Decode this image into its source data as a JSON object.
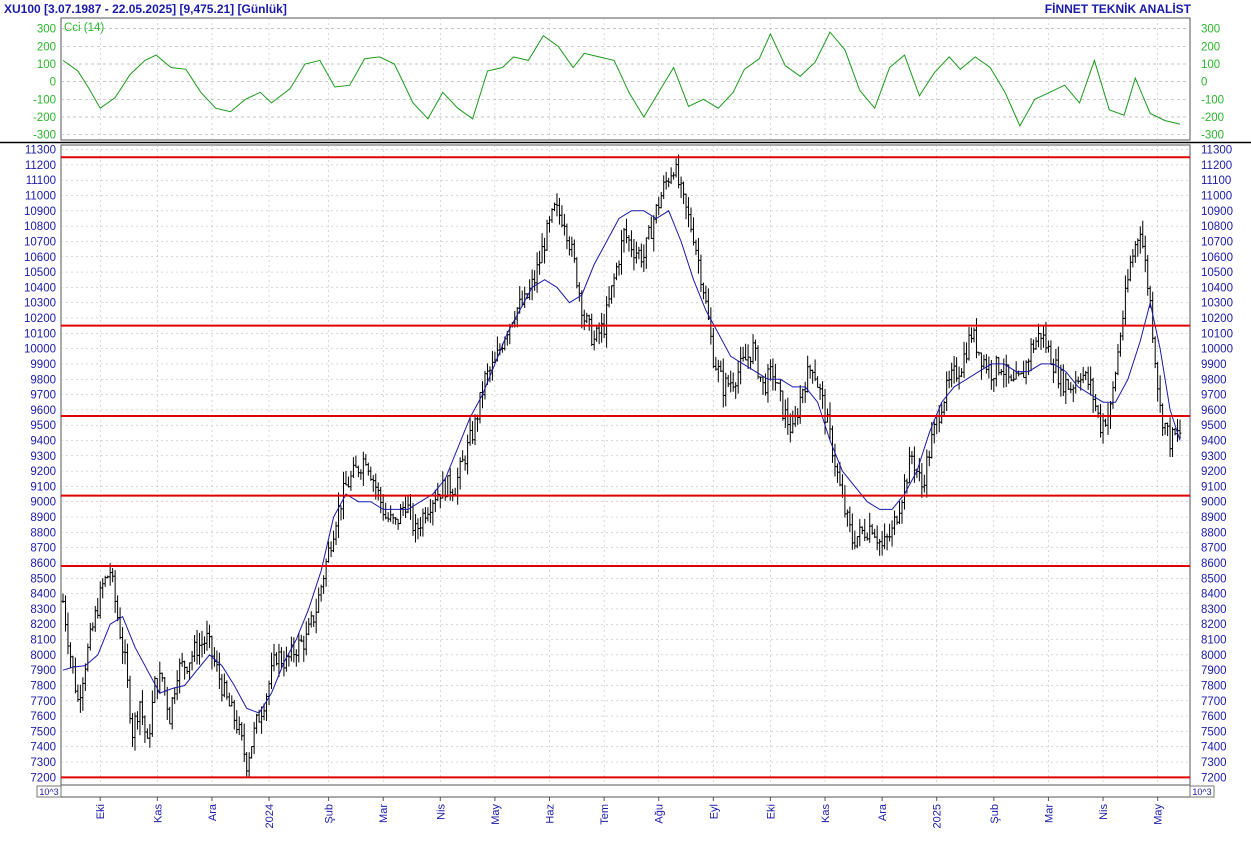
{
  "header": {
    "left": "XU100  [3.07.1987 - 22.05.2025]  [9,475.21]  [Günlük]",
    "right": "FİNNET TEKNİK ANALİST"
  },
  "colors": {
    "price_bar": "#000000",
    "moving_average": "#1a1aa8",
    "cci": "#1a9a1a",
    "horizontal_level": "#e00000",
    "axis_text": "#1a1aa8",
    "cci_axis_text": "#2bb52b",
    "grid": "#b0b0b0"
  },
  "chart_data": [
    {
      "type": "line",
      "indicator": "CCI",
      "title": "Cci (14)",
      "ylim": [
        -330,
        360
      ],
      "yticks": [
        300,
        200,
        100,
        0,
        -100,
        -200,
        -300
      ],
      "x_index_range": [
        0,
        300
      ],
      "points": [
        [
          0,
          120
        ],
        [
          4,
          60
        ],
        [
          7,
          -40
        ],
        [
          10,
          -150
        ],
        [
          14,
          -90
        ],
        [
          18,
          40
        ],
        [
          22,
          120
        ],
        [
          25,
          150
        ],
        [
          29,
          80
        ],
        [
          33,
          70
        ],
        [
          37,
          -60
        ],
        [
          41,
          -150
        ],
        [
          45,
          -170
        ],
        [
          49,
          -100
        ],
        [
          53,
          -60
        ],
        [
          56,
          -120
        ],
        [
          61,
          -40
        ],
        [
          65,
          100
        ],
        [
          69,
          120
        ],
        [
          73,
          -30
        ],
        [
          77,
          -20
        ],
        [
          81,
          130
        ],
        [
          85,
          140
        ],
        [
          89,
          100
        ],
        [
          94,
          -120
        ],
        [
          98,
          -210
        ],
        [
          102,
          -60
        ],
        [
          106,
          -150
        ],
        [
          110,
          -210
        ],
        [
          114,
          60
        ],
        [
          118,
          80
        ],
        [
          121,
          140
        ],
        [
          125,
          120
        ],
        [
          129,
          260
        ],
        [
          133,
          200
        ],
        [
          137,
          80
        ],
        [
          140,
          160
        ],
        [
          144,
          140
        ],
        [
          148,
          120
        ],
        [
          152,
          -60
        ],
        [
          156,
          -200
        ],
        [
          160,
          -60
        ],
        [
          164,
          80
        ],
        [
          168,
          -140
        ],
        [
          172,
          -100
        ],
        [
          176,
          -150
        ],
        [
          180,
          -60
        ],
        [
          183,
          70
        ],
        [
          187,
          130
        ],
        [
          190,
          270
        ],
        [
          194,
          90
        ],
        [
          198,
          30
        ],
        [
          202,
          110
        ],
        [
          206,
          280
        ],
        [
          210,
          180
        ],
        [
          214,
          -50
        ],
        [
          218,
          -150
        ],
        [
          222,
          80
        ],
        [
          226,
          150
        ],
        [
          230,
          -80
        ],
        [
          234,
          50
        ],
        [
          238,
          140
        ],
        [
          241,
          70
        ],
        [
          245,
          140
        ],
        [
          249,
          80
        ],
        [
          253,
          -60
        ],
        [
          257,
          -250
        ],
        [
          261,
          -100
        ],
        [
          265,
          -60
        ],
        [
          269,
          -20
        ],
        [
          273,
          -120
        ],
        [
          277,
          120
        ],
        [
          281,
          -160
        ],
        [
          285,
          -190
        ],
        [
          288,
          20
        ],
        [
          292,
          -180
        ],
        [
          296,
          -220
        ],
        [
          300,
          -240
        ]
      ],
      "grid": true
    },
    {
      "type": "ohlc",
      "title": "XU100",
      "ylim": [
        7150,
        11330
      ],
      "yticks": [
        11300,
        11200,
        11100,
        11000,
        10900,
        10800,
        10700,
        10600,
        10500,
        10400,
        10300,
        10200,
        10100,
        10000,
        9900,
        9800,
        9700,
        9600,
        9500,
        9400,
        9300,
        9200,
        9100,
        9000,
        8900,
        8800,
        8700,
        8600,
        8500,
        8400,
        8300,
        8200,
        8100,
        8000,
        7900,
        7800,
        7700,
        7600,
        7500,
        7400,
        7300,
        7200
      ],
      "ytick_multiplier_label": "10^3",
      "x_tick_labels": [
        "Eki",
        "Kas",
        "Ara",
        "2024",
        "Şub",
        "Mar",
        "Nis",
        "May",
        "Haz",
        "Tem",
        "Ağu",
        "Eyl",
        "Eki",
        "Kas",
        "Ara",
        "2025",
        "Şub",
        "Mar",
        "Nis",
        "May"
      ],
      "x_tick_positions": [
        15,
        38,
        60,
        83,
        107,
        129,
        152,
        174,
        196,
        218,
        240,
        262,
        285,
        307,
        330,
        352,
        375,
        397,
        419,
        441
      ],
      "x_index_range": [
        0,
        450
      ],
      "horizontal_levels": [
        11250,
        10150,
        9560,
        9040,
        8580,
        7200
      ],
      "close_path": [
        [
          0,
          8350
        ],
        [
          3,
          8000
        ],
        [
          6,
          7700
        ],
        [
          9,
          7950
        ],
        [
          13,
          8250
        ],
        [
          16,
          8450
        ],
        [
          19,
          8550
        ],
        [
          22,
          8250
        ],
        [
          25,
          7950
        ],
        [
          28,
          7500
        ],
        [
          31,
          7700
        ],
        [
          34,
          7400
        ],
        [
          37,
          7800
        ],
        [
          40,
          7850
        ],
        [
          43,
          7600
        ],
        [
          46,
          7900
        ],
        [
          50,
          7950
        ],
        [
          54,
          8050
        ],
        [
          58,
          8100
        ],
        [
          62,
          7900
        ],
        [
          66,
          7700
        ],
        [
          70,
          7550
        ],
        [
          74,
          7300
        ],
        [
          78,
          7550
        ],
        [
          82,
          7750
        ],
        [
          86,
          8000
        ],
        [
          90,
          7950
        ],
        [
          94,
          8050
        ],
        [
          98,
          8100
        ],
        [
          102,
          8300
        ],
        [
          106,
          8600
        ],
        [
          110,
          8900
        ],
        [
          114,
          9100
        ],
        [
          118,
          9200
        ],
        [
          122,
          9300
        ],
        [
          126,
          9100
        ],
        [
          130,
          8900
        ],
        [
          134,
          8850
        ],
        [
          138,
          9000
        ],
        [
          142,
          8800
        ],
        [
          146,
          8950
        ],
        [
          150,
          9050
        ],
        [
          154,
          9100
        ],
        [
          158,
          9100
        ],
        [
          162,
          9300
        ],
        [
          166,
          9500
        ],
        [
          170,
          9800
        ],
        [
          174,
          9900
        ],
        [
          178,
          10100
        ],
        [
          182,
          10250
        ],
        [
          186,
          10300
        ],
        [
          190,
          10450
        ],
        [
          194,
          10700
        ],
        [
          198,
          10900
        ],
        [
          202,
          10850
        ],
        [
          206,
          10550
        ],
        [
          210,
          10200
        ],
        [
          214,
          10050
        ],
        [
          218,
          10150
        ],
        [
          222,
          10450
        ],
        [
          226,
          10750
        ],
        [
          230,
          10650
        ],
        [
          234,
          10600
        ],
        [
          238,
          10850
        ],
        [
          242,
          11050
        ],
        [
          246,
          11200
        ],
        [
          250,
          10950
        ],
        [
          254,
          10750
        ],
        [
          258,
          10400
        ],
        [
          262,
          9950
        ],
        [
          266,
          9750
        ],
        [
          270,
          9800
        ],
        [
          274,
          9900
        ],
        [
          278,
          10000
        ],
        [
          282,
          9750
        ],
        [
          286,
          9850
        ],
        [
          290,
          9600
        ],
        [
          294,
          9450
        ],
        [
          298,
          9750
        ],
        [
          302,
          9900
        ],
        [
          306,
          9650
        ],
        [
          310,
          9350
        ],
        [
          314,
          9000
        ],
        [
          318,
          8750
        ],
        [
          322,
          8800
        ],
        [
          326,
          8850
        ],
        [
          330,
          8700
        ],
        [
          334,
          8800
        ],
        [
          338,
          9050
        ],
        [
          342,
          9300
        ],
        [
          346,
          9100
        ],
        [
          350,
          9400
        ],
        [
          354,
          9650
        ],
        [
          358,
          9800
        ],
        [
          362,
          9900
        ],
        [
          366,
          10100
        ],
        [
          370,
          9950
        ],
        [
          374,
          9850
        ],
        [
          378,
          9900
        ],
        [
          382,
          9750
        ],
        [
          386,
          9800
        ],
        [
          390,
          10000
        ],
        [
          394,
          10100
        ],
        [
          398,
          9950
        ],
        [
          402,
          9800
        ],
        [
          406,
          9750
        ],
        [
          410,
          9850
        ],
        [
          414,
          9750
        ],
        [
          418,
          9500
        ],
        [
          422,
          9600
        ],
        [
          426,
          10100
        ],
        [
          430,
          10550
        ],
        [
          434,
          10800
        ],
        [
          438,
          10300
        ],
        [
          442,
          9600
        ],
        [
          446,
          9400
        ],
        [
          450,
          9450
        ]
      ],
      "moving_average_path": [
        [
          0,
          7900
        ],
        [
          4,
          7920
        ],
        [
          9,
          7930
        ],
        [
          14,
          8000
        ],
        [
          19,
          8200
        ],
        [
          24,
          8250
        ],
        [
          29,
          8050
        ],
        [
          34,
          7900
        ],
        [
          39,
          7750
        ],
        [
          44,
          7780
        ],
        [
          49,
          7800
        ],
        [
          54,
          7900
        ],
        [
          59,
          8000
        ],
        [
          64,
          7930
        ],
        [
          69,
          7800
        ],
        [
          74,
          7650
        ],
        [
          79,
          7620
        ],
        [
          84,
          7750
        ],
        [
          89,
          7950
        ],
        [
          94,
          8100
        ],
        [
          99,
          8300
        ],
        [
          104,
          8550
        ],
        [
          109,
          8900
        ],
        [
          114,
          9050
        ],
        [
          119,
          9000
        ],
        [
          124,
          9000
        ],
        [
          129,
          8950
        ],
        [
          134,
          8950
        ],
        [
          139,
          8950
        ],
        [
          144,
          9000
        ],
        [
          149,
          9050
        ],
        [
          154,
          9150
        ],
        [
          159,
          9350
        ],
        [
          164,
          9550
        ],
        [
          169,
          9700
        ],
        [
          174,
          9900
        ],
        [
          179,
          10100
        ],
        [
          184,
          10250
        ],
        [
          189,
          10400
        ],
        [
          194,
          10450
        ],
        [
          199,
          10400
        ],
        [
          204,
          10300
        ],
        [
          209,
          10350
        ],
        [
          214,
          10550
        ],
        [
          219,
          10700
        ],
        [
          224,
          10850
        ],
        [
          229,
          10900
        ],
        [
          234,
          10900
        ],
        [
          239,
          10850
        ],
        [
          244,
          10900
        ],
        [
          249,
          10700
        ],
        [
          254,
          10450
        ],
        [
          259,
          10250
        ],
        [
          264,
          10100
        ],
        [
          269,
          9950
        ],
        [
          274,
          9900
        ],
        [
          279,
          9850
        ],
        [
          284,
          9800
        ],
        [
          289,
          9800
        ],
        [
          294,
          9750
        ],
        [
          299,
          9750
        ],
        [
          304,
          9650
        ],
        [
          309,
          9400
        ],
        [
          314,
          9200
        ],
        [
          319,
          9100
        ],
        [
          324,
          9000
        ],
        [
          329,
          8950
        ],
        [
          334,
          8950
        ],
        [
          339,
          9050
        ],
        [
          344,
          9200
        ],
        [
          349,
          9450
        ],
        [
          354,
          9650
        ],
        [
          359,
          9750
        ],
        [
          364,
          9800
        ],
        [
          369,
          9850
        ],
        [
          374,
          9900
        ],
        [
          379,
          9900
        ],
        [
          384,
          9850
        ],
        [
          389,
          9850
        ],
        [
          394,
          9900
        ],
        [
          399,
          9900
        ],
        [
          404,
          9850
        ],
        [
          409,
          9750
        ],
        [
          414,
          9700
        ],
        [
          419,
          9650
        ],
        [
          424,
          9650
        ],
        [
          429,
          9800
        ],
        [
          434,
          10050
        ],
        [
          438,
          10300
        ],
        [
          442,
          10000
        ],
        [
          446,
          9600
        ],
        [
          450,
          9400
        ]
      ]
    }
  ]
}
